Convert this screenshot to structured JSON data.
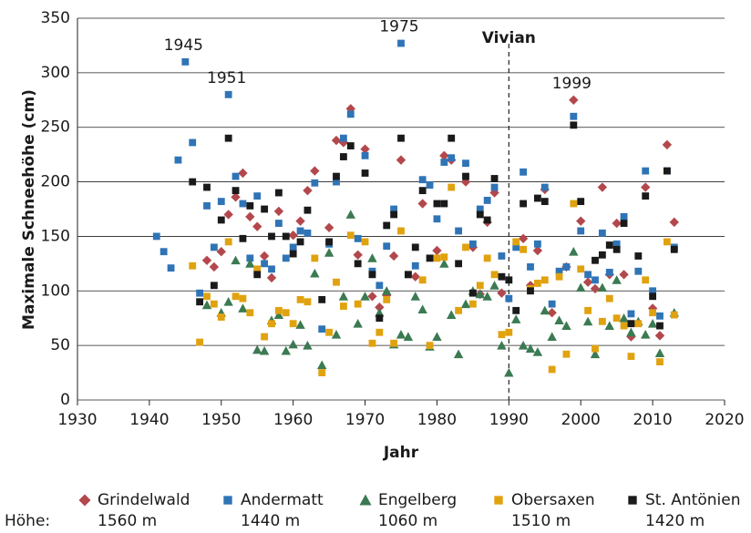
{
  "chart_data": {
    "type": "scatter",
    "xlabel": "Jahr",
    "ylabel": "Maximale Schneehöhe (cm)",
    "xlim": [
      1930,
      2020
    ],
    "xticks": [
      1930,
      1940,
      1950,
      1960,
      1970,
      1980,
      1990,
      2000,
      2010,
      2020
    ],
    "ylim": [
      0,
      350
    ],
    "yticks": [
      0,
      50,
      100,
      150,
      200,
      250,
      300,
      350
    ],
    "grid": true,
    "legend_title": "Höhe:",
    "marker_line": {
      "label": "Vivian",
      "x": 1990
    },
    "annotations": [
      "1945",
      "1951",
      "1975",
      "1999"
    ],
    "series": [
      {
        "name": "Grindelwald",
        "elevation": "1560 m",
        "marker": "diamond",
        "color": "#b3484c",
        "x": [
          1948,
          1949,
          1950,
          1951,
          1952,
          1953,
          1954,
          1955,
          1956,
          1957,
          1958,
          1960,
          1961,
          1962,
          1963,
          1965,
          1966,
          1967,
          1968,
          1969,
          1970,
          1971,
          1972,
          1973,
          1974,
          1975,
          1977,
          1978,
          1980,
          1981,
          1982,
          1984,
          1985,
          1986,
          1987,
          1988,
          1989,
          1992,
          1993,
          1994,
          1995,
          1996,
          1998,
          1999,
          2000,
          2001,
          2002,
          2003,
          2004,
          2005,
          2006,
          2007,
          2009,
          2010,
          2011,
          2012,
          2013
        ],
        "values": [
          128,
          122,
          136,
          170,
          186,
          208,
          168,
          159,
          132,
          112,
          173,
          151,
          164,
          192,
          210,
          158,
          238,
          236,
          267,
          133,
          230,
          95,
          85,
          96,
          132,
          220,
          113,
          180,
          137,
          224,
          220,
          200,
          140,
          97,
          163,
          190,
          98,
          148,
          105,
          137,
          193,
          80,
          122,
          275,
          164,
          108,
          102,
          195,
          115,
          162,
          115,
          58,
          195,
          84,
          59,
          234,
          163
        ]
      },
      {
        "name": "Andermatt",
        "elevation": "1440 m",
        "marker": "square",
        "color": "#2f74b6",
        "x": [
          1941,
          1942,
          1943,
          1944,
          1945,
          1946,
          1947,
          1948,
          1949,
          1950,
          1951,
          1952,
          1953,
          1954,
          1955,
          1956,
          1957,
          1958,
          1959,
          1960,
          1961,
          1962,
          1963,
          1964,
          1965,
          1966,
          1967,
          1968,
          1969,
          1970,
          1971,
          1972,
          1973,
          1974,
          1975,
          1976,
          1977,
          1978,
          1979,
          1980,
          1981,
          1982,
          1983,
          1984,
          1985,
          1986,
          1987,
          1988,
          1989,
          1990,
          1991,
          1992,
          1993,
          1994,
          1995,
          1996,
          1997,
          1998,
          1999,
          2000,
          2001,
          2002,
          2003,
          2004,
          2005,
          2006,
          2007,
          2008,
          2009,
          2010,
          2011,
          2012,
          2013
        ],
        "values": [
          150,
          136,
          121,
          220,
          310,
          236,
          98,
          178,
          140,
          182,
          280,
          205,
          180,
          130,
          187,
          125,
          120,
          162,
          130,
          140,
          155,
          153,
          199,
          65,
          143,
          200,
          240,
          262,
          148,
          224,
          118,
          105,
          141,
          175,
          327,
          115,
          123,
          202,
          197,
          166,
          218,
          222,
          155,
          217,
          143,
          175,
          183,
          195,
          132,
          93,
          140,
          209,
          122,
          143,
          195,
          88,
          118,
          122,
          260,
          155,
          115,
          110,
          153,
          117,
          143,
          168,
          79,
          118,
          210,
          100,
          77,
          210,
          140
        ]
      },
      {
        "name": "Engelberg",
        "elevation": "1060 m",
        "marker": "triangle",
        "color": "#3b7a52",
        "x": [
          1948,
          1950,
          1951,
          1952,
          1953,
          1954,
          1955,
          1956,
          1957,
          1958,
          1959,
          1960,
          1961,
          1962,
          1963,
          1964,
          1965,
          1966,
          1967,
          1968,
          1969,
          1970,
          1971,
          1972,
          1973,
          1974,
          1975,
          1976,
          1977,
          1978,
          1979,
          1980,
          1981,
          1982,
          1983,
          1984,
          1985,
          1986,
          1987,
          1988,
          1989,
          1990,
          1991,
          1992,
          1993,
          1994,
          1995,
          1996,
          1997,
          1998,
          1999,
          2000,
          2001,
          2002,
          2003,
          2004,
          2005,
          2006,
          2007,
          2008,
          2009,
          2010,
          2011,
          2013
        ],
        "values": [
          87,
          80,
          90,
          128,
          84,
          125,
          46,
          45,
          73,
          78,
          45,
          51,
          69,
          50,
          116,
          32,
          135,
          60,
          95,
          170,
          70,
          95,
          130,
          80,
          100,
          51,
          60,
          58,
          95,
          83,
          49,
          58,
          125,
          78,
          42,
          88,
          100,
          97,
          95,
          105,
          50,
          25,
          74,
          50,
          47,
          44,
          82,
          58,
          73,
          68,
          136,
          103,
          72,
          42,
          103,
          68,
          110,
          75,
          62,
          72,
          60,
          70,
          43,
          80
        ]
      },
      {
        "name": "Obersaxen",
        "elevation": "1510 m",
        "marker": "square",
        "color": "#e1a20f",
        "x": [
          1946,
          1947,
          1948,
          1949,
          1950,
          1951,
          1952,
          1953,
          1954,
          1955,
          1956,
          1957,
          1958,
          1959,
          1960,
          1961,
          1962,
          1963,
          1964,
          1965,
          1966,
          1967,
          1968,
          1969,
          1970,
          1971,
          1972,
          1973,
          1974,
          1975,
          1976,
          1978,
          1979,
          1980,
          1981,
          1982,
          1983,
          1984,
          1985,
          1986,
          1987,
          1988,
          1989,
          1990,
          1991,
          1992,
          1993,
          1994,
          1995,
          1996,
          1997,
          1998,
          1999,
          2000,
          2001,
          2002,
          2003,
          2004,
          2005,
          2006,
          2007,
          2008,
          2009,
          2010,
          2011,
          2012,
          2013
        ],
        "values": [
          123,
          53,
          95,
          88,
          76,
          145,
          95,
          93,
          80,
          120,
          58,
          70,
          82,
          80,
          70,
          92,
          90,
          130,
          25,
          62,
          108,
          86,
          151,
          88,
          145,
          52,
          62,
          92,
          52,
          155,
          115,
          110,
          50,
          130,
          131,
          195,
          82,
          140,
          88,
          105,
          130,
          115,
          60,
          62,
          145,
          138,
          102,
          107,
          110,
          28,
          113,
          42,
          180,
          120,
          82,
          47,
          72,
          93,
          75,
          68,
          40,
          70,
          110,
          80,
          35,
          145,
          78
        ]
      },
      {
        "name": "St. Antönien",
        "elevation": "1420 m",
        "marker": "square",
        "color": "#1a1a1a",
        "x": [
          1946,
          1947,
          1948,
          1949,
          1950,
          1951,
          1952,
          1953,
          1954,
          1955,
          1956,
          1957,
          1958,
          1959,
          1960,
          1961,
          1962,
          1964,
          1965,
          1966,
          1967,
          1968,
          1969,
          1970,
          1971,
          1972,
          1973,
          1974,
          1975,
          1976,
          1977,
          1978,
          1979,
          1980,
          1981,
          1982,
          1983,
          1984,
          1985,
          1986,
          1987,
          1988,
          1989,
          1990,
          1991,
          1992,
          1993,
          1994,
          1995,
          1999,
          2000,
          2002,
          2003,
          2004,
          2005,
          2006,
          2007,
          2008,
          2009,
          2010,
          2011,
          2012,
          2013
        ],
        "values": [
          200,
          90,
          195,
          105,
          165,
          240,
          192,
          148,
          178,
          115,
          175,
          150,
          190,
          150,
          134,
          145,
          174,
          92,
          145,
          205,
          223,
          233,
          125,
          208,
          115,
          75,
          160,
          170,
          240,
          115,
          140,
          192,
          130,
          180,
          180,
          240,
          125,
          205,
          98,
          170,
          165,
          203,
          113,
          110,
          82,
          180,
          100,
          185,
          182,
          252,
          182,
          128,
          133,
          142,
          138,
          162,
          70,
          132,
          187,
          95,
          68,
          210,
          138
        ]
      }
    ]
  }
}
